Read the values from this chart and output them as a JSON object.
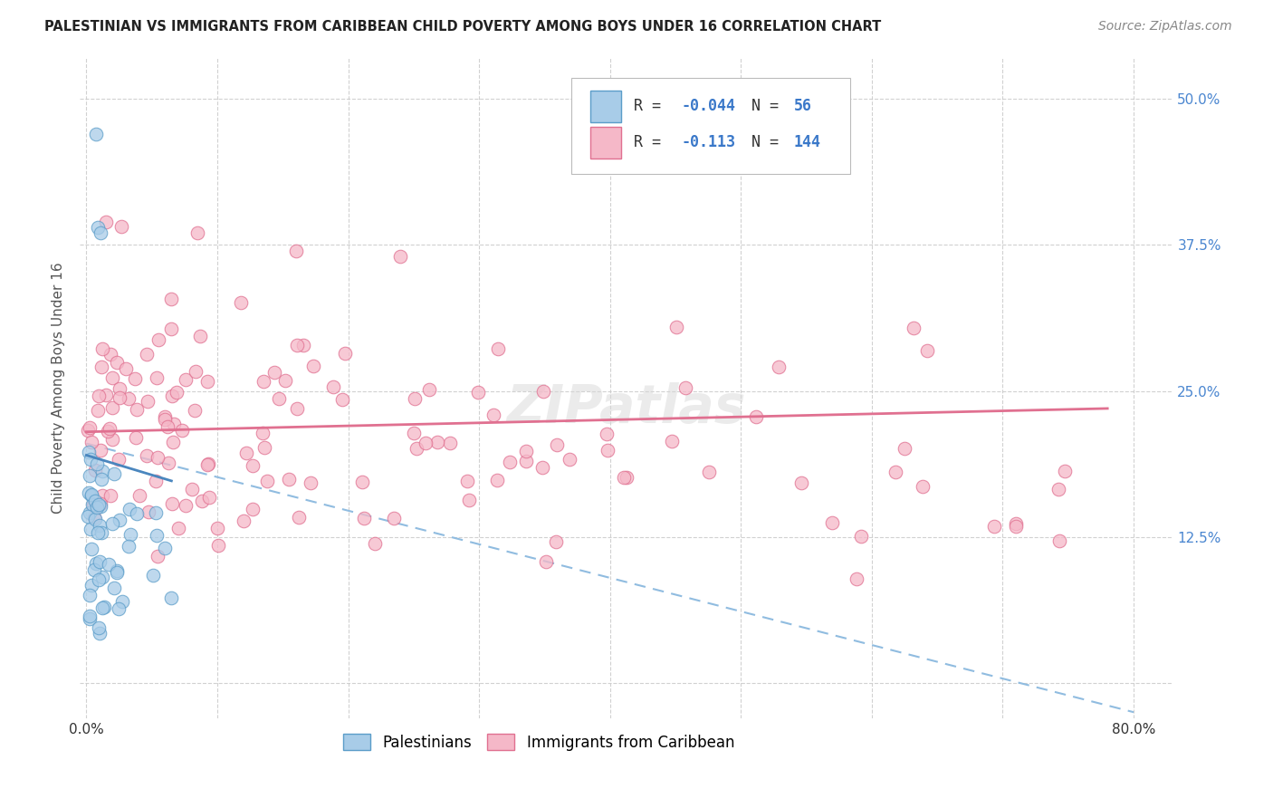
{
  "title": "PALESTINIAN VS IMMIGRANTS FROM CARIBBEAN CHILD POVERTY AMONG BOYS UNDER 16 CORRELATION CHART",
  "source": "Source: ZipAtlas.com",
  "ylabel": "Child Poverty Among Boys Under 16",
  "xlim": [
    -0.005,
    0.83
  ],
  "ylim": [
    -0.03,
    0.535
  ],
  "legend_R1": "-0.044",
  "legend_N1": "56",
  "legend_R2": "-0.113",
  "legend_N2": "144",
  "color_blue_fill": "#a8cce8",
  "color_blue_edge": "#5b9dc9",
  "color_blue_line": "#4a86be",
  "color_pink_fill": "#f5b8c8",
  "color_pink_edge": "#e07090",
  "color_pink_line": "#e07090",
  "color_dashed": "#90bce0",
  "watermark": "ZIPatlas",
  "title_fontsize": 10.5,
  "source_fontsize": 10,
  "tick_fontsize": 11,
  "ylabel_fontsize": 11
}
